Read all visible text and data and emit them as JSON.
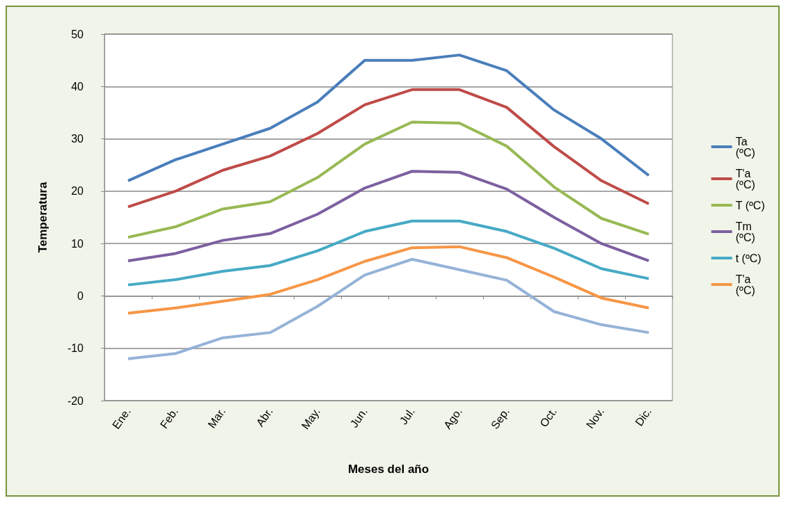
{
  "chart_data": {
    "type": "line",
    "xlabel": "Meses del año",
    "ylabel": "Temperatura",
    "categories": [
      "Ene.",
      "Feb.",
      "Mar.",
      "Abr.",
      "May.",
      "Jun.",
      "Jul.",
      "Ago.",
      "Sep.",
      "Oct.",
      "Nov.",
      "Dic."
    ],
    "series": [
      {
        "name": "Ta (ºC)",
        "color": "#4a7ebb",
        "values": [
          22,
          26,
          29,
          32,
          37,
          45,
          45,
          46,
          43,
          35.5,
          30,
          23
        ]
      },
      {
        "name": "T'a (ºC)",
        "color": "#be4b48",
        "values": [
          17,
          20,
          24,
          26.7,
          31,
          36.5,
          39.4,
          39.4,
          36,
          28.5,
          22,
          17.6
        ]
      },
      {
        "name": "T (ºC)",
        "color": "#98b954",
        "values": [
          11.2,
          13.2,
          16.6,
          18,
          22.6,
          29,
          33.2,
          33,
          28.6,
          20.8,
          14.8,
          11.8
        ]
      },
      {
        "name": "Tm (ºC)",
        "color": "#7d60a0",
        "values": [
          6.7,
          8.1,
          10.6,
          11.9,
          15.6,
          20.6,
          23.8,
          23.6,
          20.4,
          15,
          10,
          6.7
        ]
      },
      {
        "name": "t (ºC)",
        "color": "#46aac5",
        "values": [
          2.1,
          3.1,
          4.7,
          5.8,
          8.6,
          12.3,
          14.3,
          14.3,
          12.3,
          9.1,
          5.2,
          3.3
        ]
      },
      {
        "name": "T'a (ºC)",
        "color": "#f79646",
        "values": [
          -3.3,
          -2.3,
          -1,
          0.3,
          3.1,
          6.6,
          9.2,
          9.4,
          7.3,
          3.6,
          -0.4,
          -2.3
        ]
      },
      {
        "color": "#95b3d7",
        "values": [
          -12,
          -11,
          -8,
          -7,
          -2,
          4,
          7,
          5,
          3,
          -3,
          -5.5,
          -7
        ]
      }
    ],
    "ylim": [
      -20,
      50
    ],
    "yticks": [
      -20,
      -10,
      0,
      10,
      20,
      30,
      40,
      50
    ],
    "grid": "y",
    "legend": "right",
    "marker": "none",
    "line_style": "solid"
  }
}
